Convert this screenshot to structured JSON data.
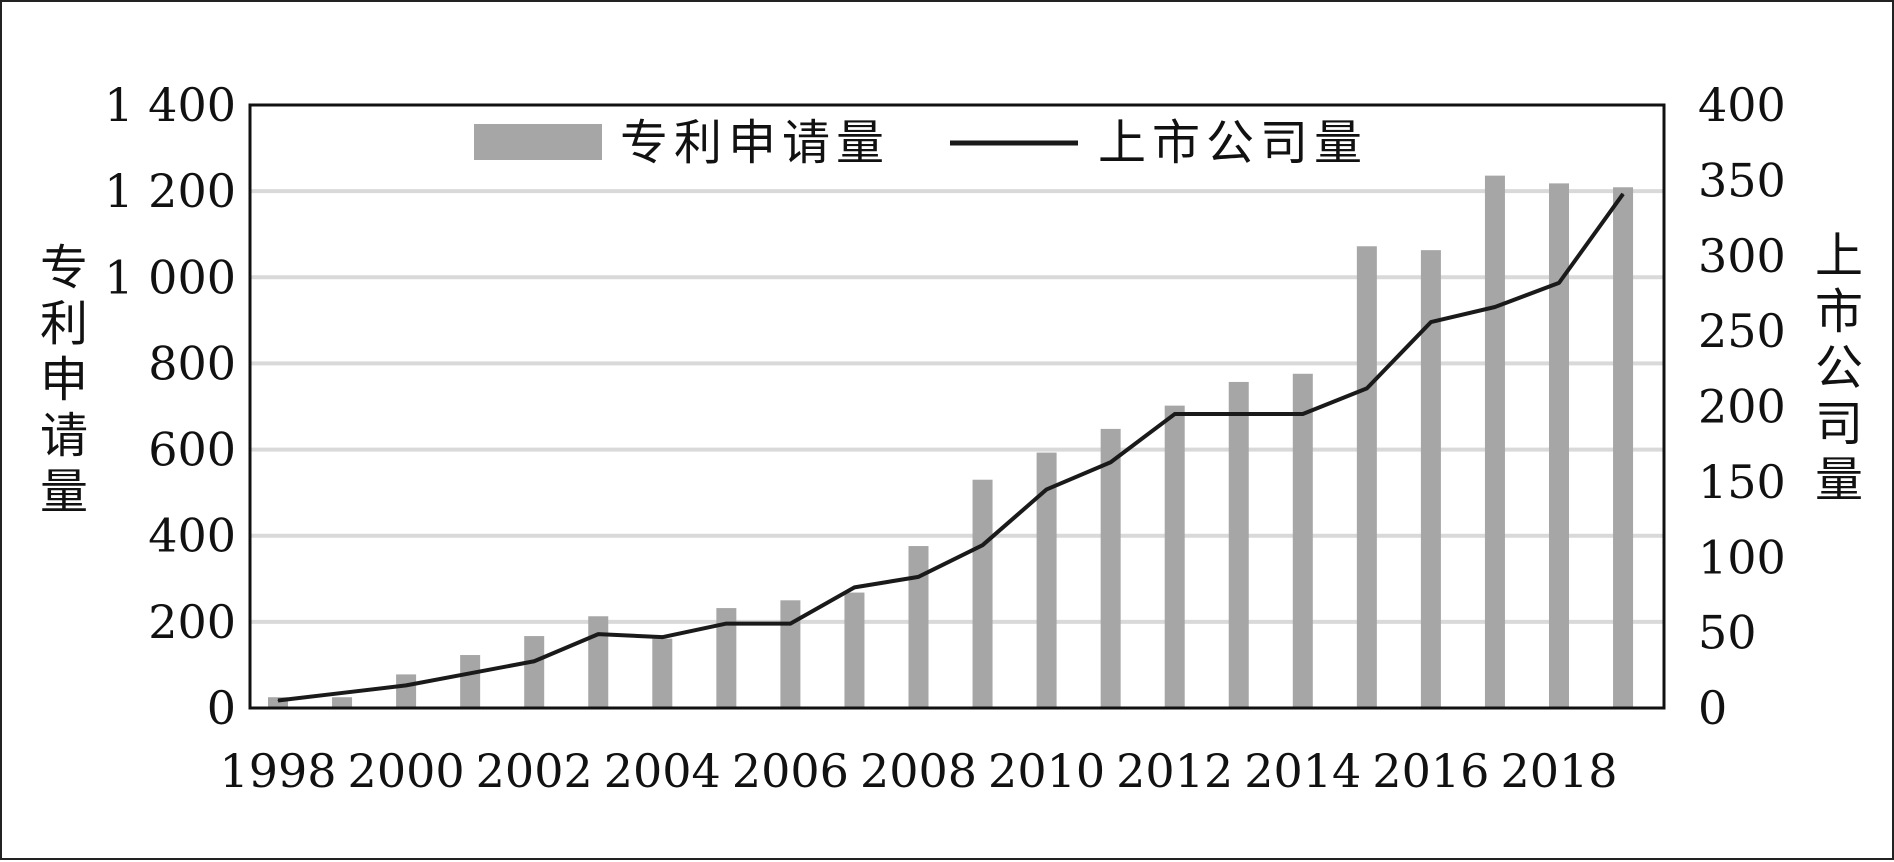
{
  "chart_data": {
    "type": "bar",
    "x": [
      1998,
      1999,
      2000,
      2001,
      2002,
      2003,
      2004,
      2005,
      2006,
      2007,
      2008,
      2009,
      2010,
      2011,
      2012,
      2013,
      2014,
      2015,
      2016,
      2017,
      2018,
      2019
    ],
    "x_tick_labels": [
      "1998",
      "2000",
      "2002",
      "2004",
      "2006",
      "2008",
      "2010",
      "2012",
      "2014",
      "2016",
      "2018"
    ],
    "series": [
      {
        "name": "专利申请量",
        "kind": "bar",
        "axis": "left",
        "color": "#a6a6a6",
        "values": [
          25,
          25,
          78,
          123,
          167,
          213,
          161,
          232,
          250,
          268,
          376,
          530,
          593,
          648,
          702,
          757,
          776,
          1072,
          1063,
          1236,
          1218,
          1209
        ]
      },
      {
        "name": "上市公司量",
        "kind": "line",
        "axis": "right",
        "color": "#1a1a1a",
        "values": [
          5,
          10,
          15,
          23,
          31,
          49,
          47,
          56,
          56,
          80,
          87,
          108,
          145,
          163,
          195,
          195,
          195,
          212,
          256,
          266,
          282,
          341
        ]
      }
    ],
    "ylabel_left": "专利申请量",
    "ylabel_right": "上市公司量",
    "ylim_left": [
      0,
      1400
    ],
    "ylim_right": [
      0,
      400
    ],
    "y_left_ticks": [
      0,
      200,
      400,
      600,
      800,
      1000,
      1200,
      1400
    ],
    "y_left_tick_labels": [
      "0",
      "200",
      "400",
      "600",
      "800",
      "1 000",
      "1 200",
      "1 400"
    ],
    "y_right_ticks": [
      0,
      50,
      100,
      150,
      200,
      250,
      300,
      350,
      400
    ],
    "y_right_tick_labels": [
      "0",
      "50",
      "100",
      "150",
      "200",
      "250",
      "300",
      "350",
      "400"
    ],
    "legend": {
      "placement": "top-center",
      "items": [
        "专利申请量",
        "上市公司量"
      ]
    },
    "grid": true
  }
}
